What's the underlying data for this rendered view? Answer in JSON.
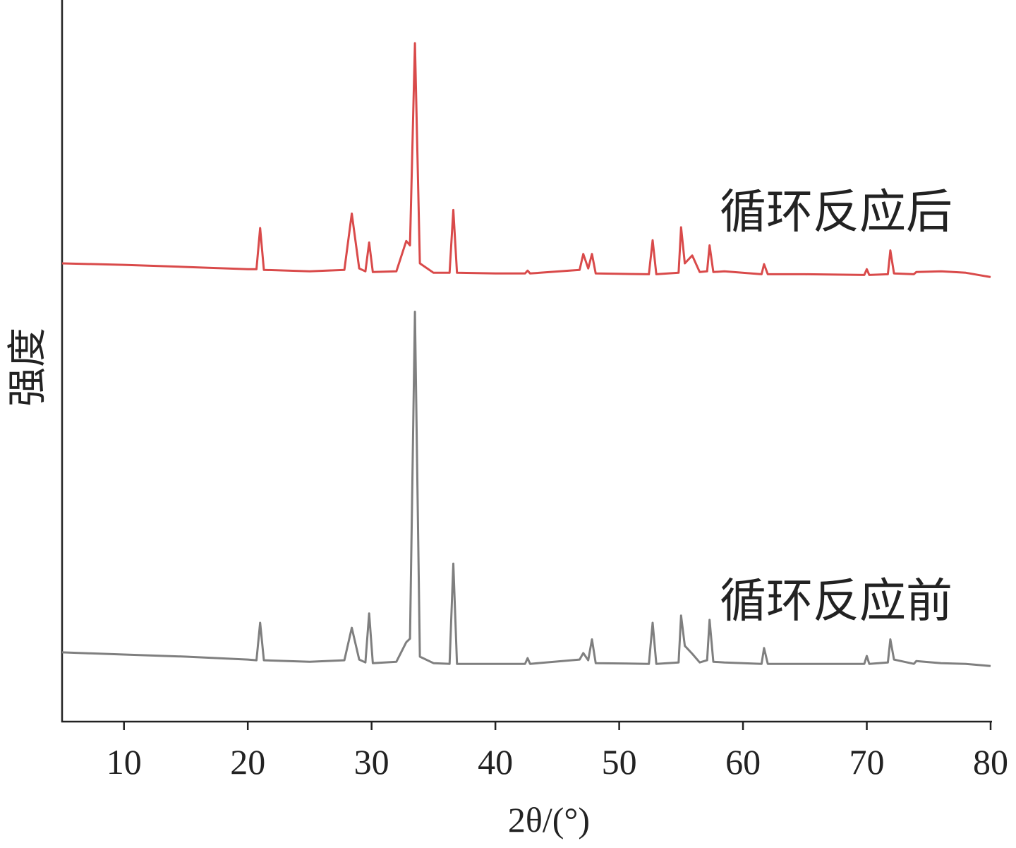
{
  "chart_data": {
    "type": "line",
    "x_label": "2θ/(°)",
    "y_label": "强度",
    "xlim": [
      5,
      80
    ],
    "xticks": [
      10,
      20,
      30,
      40,
      50,
      60,
      70,
      80
    ],
    "ylim": [
      0,
      100
    ],
    "x": [
      5,
      10,
      15,
      20,
      20.7,
      21,
      21.3,
      25,
      27.8,
      28.4,
      29,
      29.5,
      29.8,
      30.1,
      32,
      32.8,
      33.1,
      33.5,
      33.9,
      35,
      36.3,
      36.6,
      36.9,
      40,
      42.4,
      42.6,
      42.8,
      46.8,
      47.1,
      47.5,
      47.8,
      48.1,
      52.4,
      52.7,
      53,
      54.8,
      55,
      55.3,
      55.9,
      56.5,
      57.1,
      57.3,
      57.6,
      58.5,
      61.5,
      61.7,
      62,
      65,
      69.8,
      70,
      70.2,
      71.7,
      71.9,
      72.2,
      73.8,
      74,
      76,
      78,
      80
    ],
    "series": [
      {
        "name": "循环反应后",
        "color": "#d94a4a",
        "values": [
          63.5,
          63.3,
          63.0,
          62.7,
          62.7,
          68.4,
          62.6,
          62.4,
          62.6,
          70.4,
          62.8,
          62.4,
          66.4,
          62.3,
          62.4,
          66.6,
          66.0,
          94.0,
          63.5,
          62.2,
          62.2,
          70.9,
          62.2,
          62.1,
          62.1,
          62.5,
          62.1,
          62.6,
          64.8,
          62.8,
          64.8,
          62.1,
          62.0,
          66.7,
          62.0,
          62.2,
          68.5,
          63.5,
          64.6,
          62.3,
          62.4,
          66.0,
          62.3,
          62.4,
          62.0,
          63.4,
          62.0,
          62.0,
          61.9,
          62.7,
          61.9,
          62.0,
          65.3,
          62.1,
          62.0,
          62.3,
          62.4,
          62.2,
          61.6
        ]
      },
      {
        "name": "循环反应前",
        "color": "#7f7f7f",
        "values": [
          9.6,
          9.3,
          9.0,
          8.6,
          8.5,
          13.7,
          8.5,
          8.3,
          8.5,
          13.0,
          8.6,
          8.2,
          15.0,
          8.1,
          8.3,
          11.0,
          11.5,
          56.8,
          9.0,
          8.1,
          8.0,
          21.9,
          8.0,
          8.0,
          8.0,
          8.8,
          8.0,
          8.6,
          9.5,
          8.5,
          11.4,
          8.1,
          8.0,
          13.7,
          8.0,
          8.2,
          14.7,
          10.5,
          9.4,
          8.2,
          8.5,
          14.1,
          8.3,
          8.2,
          8.0,
          10.2,
          8.0,
          8.0,
          8.0,
          9.1,
          8.0,
          8.2,
          11.4,
          8.6,
          8.0,
          8.4,
          8.1,
          8.0,
          7.7
        ]
      }
    ]
  }
}
